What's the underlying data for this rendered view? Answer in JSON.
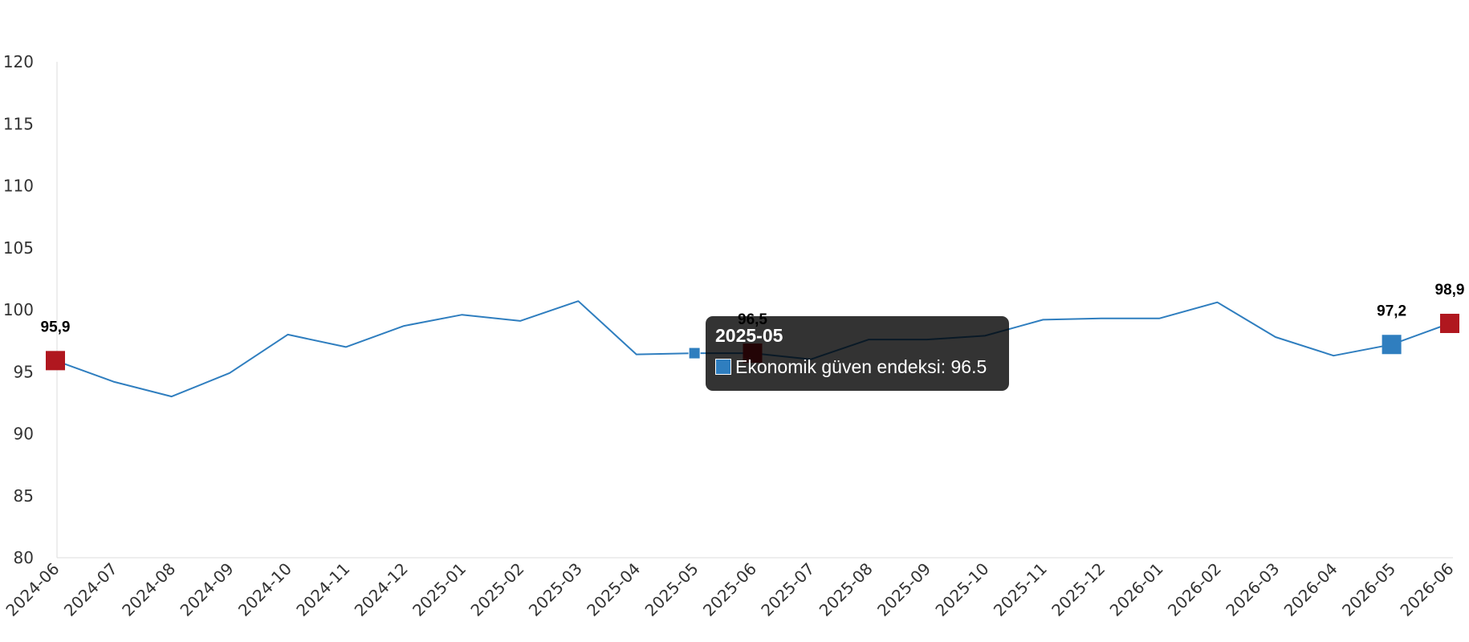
{
  "colors": {
    "line": "#2f7ebf",
    "highlight_red": "#b0171f",
    "highlight_blue": "#2f7ebf",
    "axis": "#dddddd",
    "tick_text": "#333333"
  },
  "chart_data": {
    "type": "line",
    "title": "",
    "xlabel": "",
    "ylabel": "",
    "ylim": [
      80,
      120
    ],
    "yticks": [
      "80",
      "85",
      "90",
      "95",
      "100",
      "105",
      "110",
      "115",
      "120"
    ],
    "grid": false,
    "categories": [
      "2024-06",
      "2024-07",
      "2024-08",
      "2024-09",
      "2024-10",
      "2024-11",
      "2024-12",
      "2025-01",
      "2025-02",
      "2025-03",
      "2025-04",
      "2025-05",
      "2025-06",
      "2025-07",
      "2025-08",
      "2025-09",
      "2025-10",
      "2025-11",
      "2025-12",
      "2026-01",
      "2026-02",
      "2026-03",
      "2026-04",
      "2026-05",
      "2026-06"
    ],
    "series": [
      {
        "name": "Ekonomik güven endeksi",
        "values": [
          95.9,
          94.2,
          93.0,
          94.9,
          98.0,
          97.0,
          98.7,
          99.6,
          99.1,
          100.7,
          96.4,
          96.5,
          96.5,
          96.0,
          97.6,
          97.6,
          97.9,
          99.2,
          99.3,
          99.3,
          100.6,
          97.8,
          96.3,
          97.2,
          98.9
        ]
      }
    ],
    "highlight_points": [
      {
        "category": "2024-06",
        "value": 95.9,
        "label": "95,9",
        "color": "red"
      },
      {
        "category": "2025-06",
        "value": 96.5,
        "label": "96,5",
        "color": "red"
      },
      {
        "category": "2026-05",
        "value": 97.2,
        "label": "97,2",
        "color": "blue"
      },
      {
        "category": "2026-06",
        "value": 98.9,
        "label": "98,9",
        "color": "red"
      }
    ],
    "active_point": {
      "category": "2025-05",
      "value": 96.5
    }
  },
  "tooltip": {
    "title": "2025-05",
    "text": "Ekonomik güven endeksi: 96.5"
  }
}
